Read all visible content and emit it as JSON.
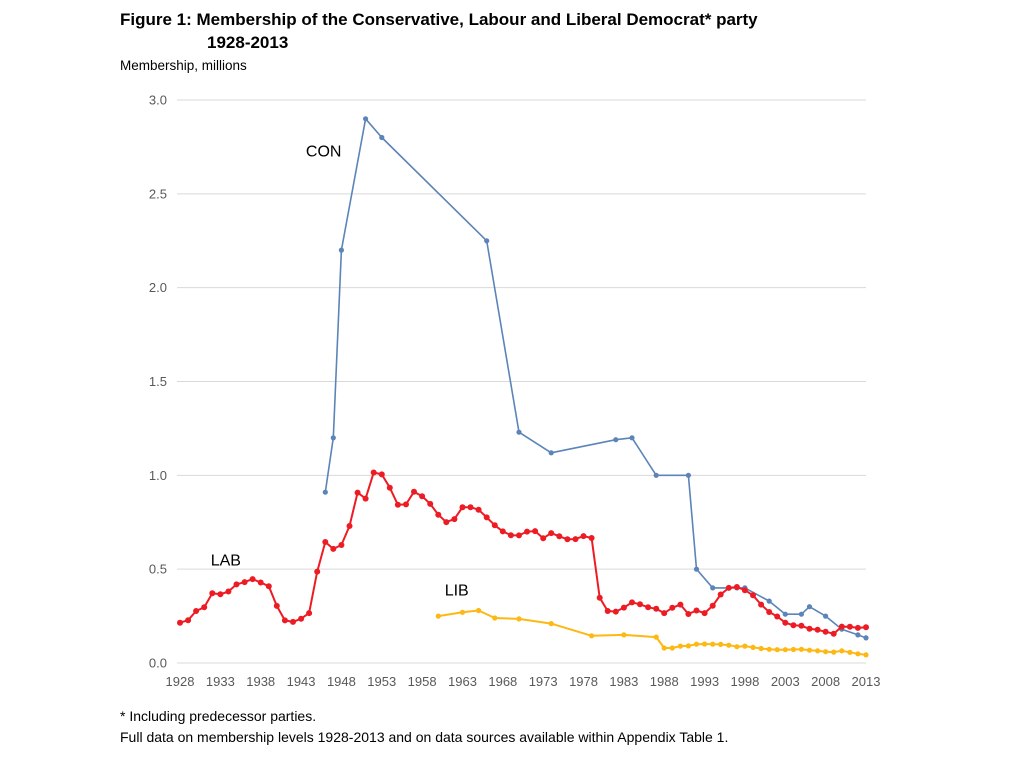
{
  "figure": {
    "title_line1": "Figure 1: Membership of the Conservative, Labour and Liberal Democrat* party",
    "title_line2": "1928-2013",
    "y_axis_unit_label": "Membership, millions",
    "footnote_line1": "* Including predecessor parties.",
    "footnote_line2": "Full data on membership levels 1928-2013 and on data sources available within Appendix Table 1."
  },
  "chart_data": {
    "type": "line",
    "title": "Figure 1: Membership of the Conservative, Labour and Liberal Democrat* party 1928-2013",
    "xlabel": "",
    "ylabel": "Membership, millions",
    "xlim": [
      1928,
      2013
    ],
    "ylim": [
      0.0,
      3.0
    ],
    "y_ticks": [
      0.0,
      0.5,
      1.0,
      1.5,
      2.0,
      2.5,
      3.0
    ],
    "x_ticks": [
      1928,
      1933,
      1938,
      1943,
      1948,
      1953,
      1958,
      1963,
      1968,
      1973,
      1978,
      1983,
      1988,
      1993,
      1998,
      2003,
      2008,
      2013
    ],
    "grid": "horizontal",
    "grid_color": "#d9d9d9",
    "legend": "inline-labels",
    "series": [
      {
        "name": "CON",
        "color": "#5b84b8",
        "line_width": 1.6,
        "marker_radius": 2.6,
        "label_pos": [
          1943.6,
          2.7
        ],
        "points": [
          [
            1946,
            0.91
          ],
          [
            1947,
            1.2
          ],
          [
            1948,
            2.2
          ],
          [
            1951,
            2.9
          ],
          [
            1953,
            2.8
          ],
          [
            1966,
            2.25
          ],
          [
            1970,
            1.23
          ],
          [
            1974,
            1.12
          ],
          [
            1982,
            1.19
          ],
          [
            1984,
            1.2
          ],
          [
            1987,
            1.0
          ],
          [
            1991,
            1.0
          ],
          [
            1992,
            0.5
          ],
          [
            1994,
            0.4
          ],
          [
            1997,
            0.4
          ],
          [
            1998,
            0.4
          ],
          [
            2001,
            0.33
          ],
          [
            2003,
            0.26
          ],
          [
            2005,
            0.26
          ],
          [
            2006,
            0.3
          ],
          [
            2008,
            0.25
          ],
          [
            2010,
            0.18
          ],
          [
            2012,
            0.15
          ],
          [
            2013,
            0.134
          ]
        ]
      },
      {
        "name": "LIB",
        "color": "#fdb813",
        "line_width": 2,
        "marker_radius": 2.6,
        "label_pos": [
          1960.8,
          0.36
        ],
        "points": [
          [
            1960,
            0.25
          ],
          [
            1963,
            0.27
          ],
          [
            1965,
            0.28
          ],
          [
            1967,
            0.24
          ],
          [
            1970,
            0.235
          ],
          [
            1974,
            0.21
          ],
          [
            1979,
            0.145
          ],
          [
            1983,
            0.15
          ],
          [
            1987,
            0.138
          ],
          [
            1988,
            0.08
          ],
          [
            1989,
            0.08
          ],
          [
            1990,
            0.09
          ],
          [
            1991,
            0.091
          ],
          [
            1992,
            0.1
          ],
          [
            1993,
            0.101
          ],
          [
            1994,
            0.1
          ],
          [
            1995,
            0.099
          ],
          [
            1996,
            0.095
          ],
          [
            1997,
            0.087
          ],
          [
            1998,
            0.09
          ],
          [
            1999,
            0.083
          ],
          [
            2000,
            0.077
          ],
          [
            2001,
            0.073
          ],
          [
            2002,
            0.071
          ],
          [
            2003,
            0.071
          ],
          [
            2004,
            0.072
          ],
          [
            2005,
            0.073
          ],
          [
            2006,
            0.068
          ],
          [
            2007,
            0.065
          ],
          [
            2008,
            0.06
          ],
          [
            2009,
            0.058
          ],
          [
            2010,
            0.065
          ],
          [
            2011,
            0.057
          ],
          [
            2012,
            0.049
          ],
          [
            2013,
            0.043
          ]
        ]
      },
      {
        "name": "LAB",
        "color": "#ed1c24",
        "line_width": 2,
        "marker_radius": 3,
        "label_pos": [
          1931.8,
          0.52
        ],
        "points": [
          [
            1928,
            0.215
          ],
          [
            1929,
            0.228
          ],
          [
            1930,
            0.277
          ],
          [
            1931,
            0.297
          ],
          [
            1932,
            0.372
          ],
          [
            1933,
            0.366
          ],
          [
            1934,
            0.381
          ],
          [
            1935,
            0.419
          ],
          [
            1936,
            0.431
          ],
          [
            1937,
            0.447
          ],
          [
            1938,
            0.429
          ],
          [
            1939,
            0.409
          ],
          [
            1940,
            0.304
          ],
          [
            1941,
            0.227
          ],
          [
            1942,
            0.219
          ],
          [
            1943,
            0.236
          ],
          [
            1944,
            0.266
          ],
          [
            1945,
            0.487
          ],
          [
            1946,
            0.645
          ],
          [
            1947,
            0.608
          ],
          [
            1948,
            0.629
          ],
          [
            1949,
            0.73
          ],
          [
            1950,
            0.908
          ],
          [
            1951,
            0.876
          ],
          [
            1952,
            1.015
          ],
          [
            1953,
            1.005
          ],
          [
            1954,
            0.934
          ],
          [
            1955,
            0.843
          ],
          [
            1956,
            0.845
          ],
          [
            1957,
            0.913
          ],
          [
            1958,
            0.889
          ],
          [
            1959,
            0.848
          ],
          [
            1960,
            0.79
          ],
          [
            1961,
            0.751
          ],
          [
            1962,
            0.767
          ],
          [
            1963,
            0.83
          ],
          [
            1964,
            0.83
          ],
          [
            1965,
            0.817
          ],
          [
            1966,
            0.776
          ],
          [
            1967,
            0.734
          ],
          [
            1968,
            0.701
          ],
          [
            1969,
            0.681
          ],
          [
            1970,
            0.68
          ],
          [
            1971,
            0.7
          ],
          [
            1972,
            0.703
          ],
          [
            1973,
            0.665
          ],
          [
            1974,
            0.692
          ],
          [
            1975,
            0.675
          ],
          [
            1976,
            0.659
          ],
          [
            1977,
            0.66
          ],
          [
            1978,
            0.676
          ],
          [
            1979,
            0.666
          ],
          [
            1980,
            0.348
          ],
          [
            1981,
            0.277
          ],
          [
            1982,
            0.274
          ],
          [
            1983,
            0.295
          ],
          [
            1984,
            0.323
          ],
          [
            1985,
            0.313
          ],
          [
            1986,
            0.297
          ],
          [
            1987,
            0.289
          ],
          [
            1988,
            0.266
          ],
          [
            1989,
            0.294
          ],
          [
            1990,
            0.311
          ],
          [
            1991,
            0.261
          ],
          [
            1992,
            0.28
          ],
          [
            1993,
            0.266
          ],
          [
            1994,
            0.305
          ],
          [
            1995,
            0.365
          ],
          [
            1996,
            0.4
          ],
          [
            1997,
            0.405
          ],
          [
            1998,
            0.388
          ],
          [
            1999,
            0.361
          ],
          [
            2000,
            0.311
          ],
          [
            2001,
            0.272
          ],
          [
            2002,
            0.248
          ],
          [
            2003,
            0.215
          ],
          [
            2004,
            0.201
          ],
          [
            2005,
            0.198
          ],
          [
            2006,
            0.182
          ],
          [
            2007,
            0.177
          ],
          [
            2008,
            0.166
          ],
          [
            2009,
            0.156
          ],
          [
            2010,
            0.194
          ],
          [
            2011,
            0.193
          ],
          [
            2012,
            0.187
          ],
          [
            2013,
            0.19
          ]
        ]
      }
    ]
  }
}
